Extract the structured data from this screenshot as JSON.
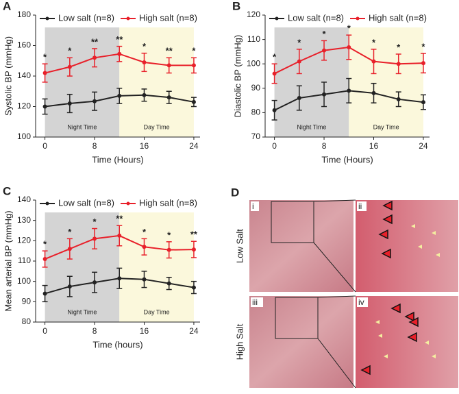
{
  "chart_data": [
    {
      "type": "line",
      "panel": "A",
      "x_label": "Time (Hours)",
      "y_label": "Systolic BP (mmHg)",
      "x": [
        0,
        4,
        8,
        12,
        16,
        20,
        24
      ],
      "xlim": [
        -1.5,
        25
      ],
      "xticks": [
        0,
        8,
        16,
        24
      ],
      "ylim": [
        100,
        180
      ],
      "yticks": [
        100,
        120,
        140,
        160,
        180
      ],
      "shaded_regions": [
        {
          "label": "Night Time",
          "range": [
            0,
            12
          ],
          "color": "#d4d4d4"
        },
        {
          "label": "Day Time",
          "range": [
            12,
            24
          ],
          "color": "#fbf8dc"
        }
      ],
      "series": [
        {
          "name": "Low salt (n=8)",
          "color": "#222222",
          "values": [
            120,
            122,
            123.5,
            127,
            127.5,
            126,
            123
          ],
          "errors": [
            5,
            6,
            6,
            5,
            4,
            4,
            3
          ]
        },
        {
          "name": "High salt (n=8)",
          "color": "#e8202a",
          "values": [
            142,
            146,
            152,
            154.5,
            149,
            147,
            147
          ],
          "errors": [
            6,
            6,
            6,
            5,
            6,
            5,
            5
          ],
          "annotations": [
            "*",
            "*",
            "**",
            "**",
            "*",
            "**",
            "*"
          ]
        }
      ]
    },
    {
      "type": "line",
      "panel": "B",
      "x_label": "Time (Hours)",
      "y_label": "Diastolic BP (mmHg)",
      "x": [
        0,
        4,
        8,
        12,
        16,
        20,
        24
      ],
      "xlim": [
        -1.5,
        25
      ],
      "xticks": [
        0,
        8,
        16,
        24
      ],
      "ylim": [
        70,
        120
      ],
      "yticks": [
        70,
        80,
        90,
        100,
        110,
        120
      ],
      "shaded_regions": [
        {
          "label": "Night Time",
          "range": [
            0,
            12
          ],
          "color": "#d4d4d4"
        },
        {
          "label": "Day Time",
          "range": [
            12,
            24
          ],
          "color": "#fbf8dc"
        }
      ],
      "series": [
        {
          "name": "Low salt (n=8)",
          "color": "#222222",
          "values": [
            81,
            86,
            87.5,
            89,
            88,
            85.5,
            84.3
          ],
          "errors": [
            4,
            5,
            5,
            5,
            4,
            3,
            3
          ]
        },
        {
          "name": "High salt (n=8)",
          "color": "#e8202a",
          "values": [
            96,
            101,
            105.5,
            106.8,
            101,
            100,
            100.3
          ],
          "errors": [
            4,
            5,
            4,
            5,
            5,
            4,
            4
          ],
          "annotations": [
            "*",
            "*",
            "*",
            "*",
            "*",
            "*",
            "*"
          ]
        }
      ]
    },
    {
      "type": "line",
      "panel": "C",
      "x_label": "Time (hours)",
      "y_label": "Mean arterial BP (mmHg)",
      "x": [
        0,
        4,
        8,
        12,
        16,
        20,
        24
      ],
      "xlim": [
        -1.5,
        25
      ],
      "xticks": [
        0,
        8,
        16,
        24
      ],
      "ylim": [
        80,
        140
      ],
      "yticks": [
        80,
        90,
        100,
        110,
        120,
        130,
        140
      ],
      "shaded_regions": [
        {
          "label": "Night Time",
          "range": [
            0,
            12
          ],
          "color": "#d4d4d4"
        },
        {
          "label": "Day Time",
          "range": [
            12,
            24
          ],
          "color": "#fbf8dc"
        }
      ],
      "series": [
        {
          "name": "Low salt (n=8)",
          "color": "#222222",
          "values": [
            94,
            97.5,
            99.5,
            101.5,
            101,
            99,
            97
          ],
          "errors": [
            4,
            5,
            5,
            5,
            4,
            3,
            3
          ]
        },
        {
          "name": "High salt (n=8)",
          "color": "#e8202a",
          "values": [
            111,
            116,
            121,
            122.5,
            117,
            115.5,
            115.7
          ],
          "errors": [
            4,
            5,
            5,
            5,
            4,
            4,
            4
          ],
          "annotations": [
            "*",
            "*",
            "*",
            "**",
            "*",
            "*",
            "**"
          ]
        }
      ]
    }
  ],
  "histology": {
    "panel": "D",
    "rows": [
      "Low Salt",
      "High Salt"
    ],
    "images": [
      "i",
      "ii",
      "iii",
      "iv"
    ]
  }
}
